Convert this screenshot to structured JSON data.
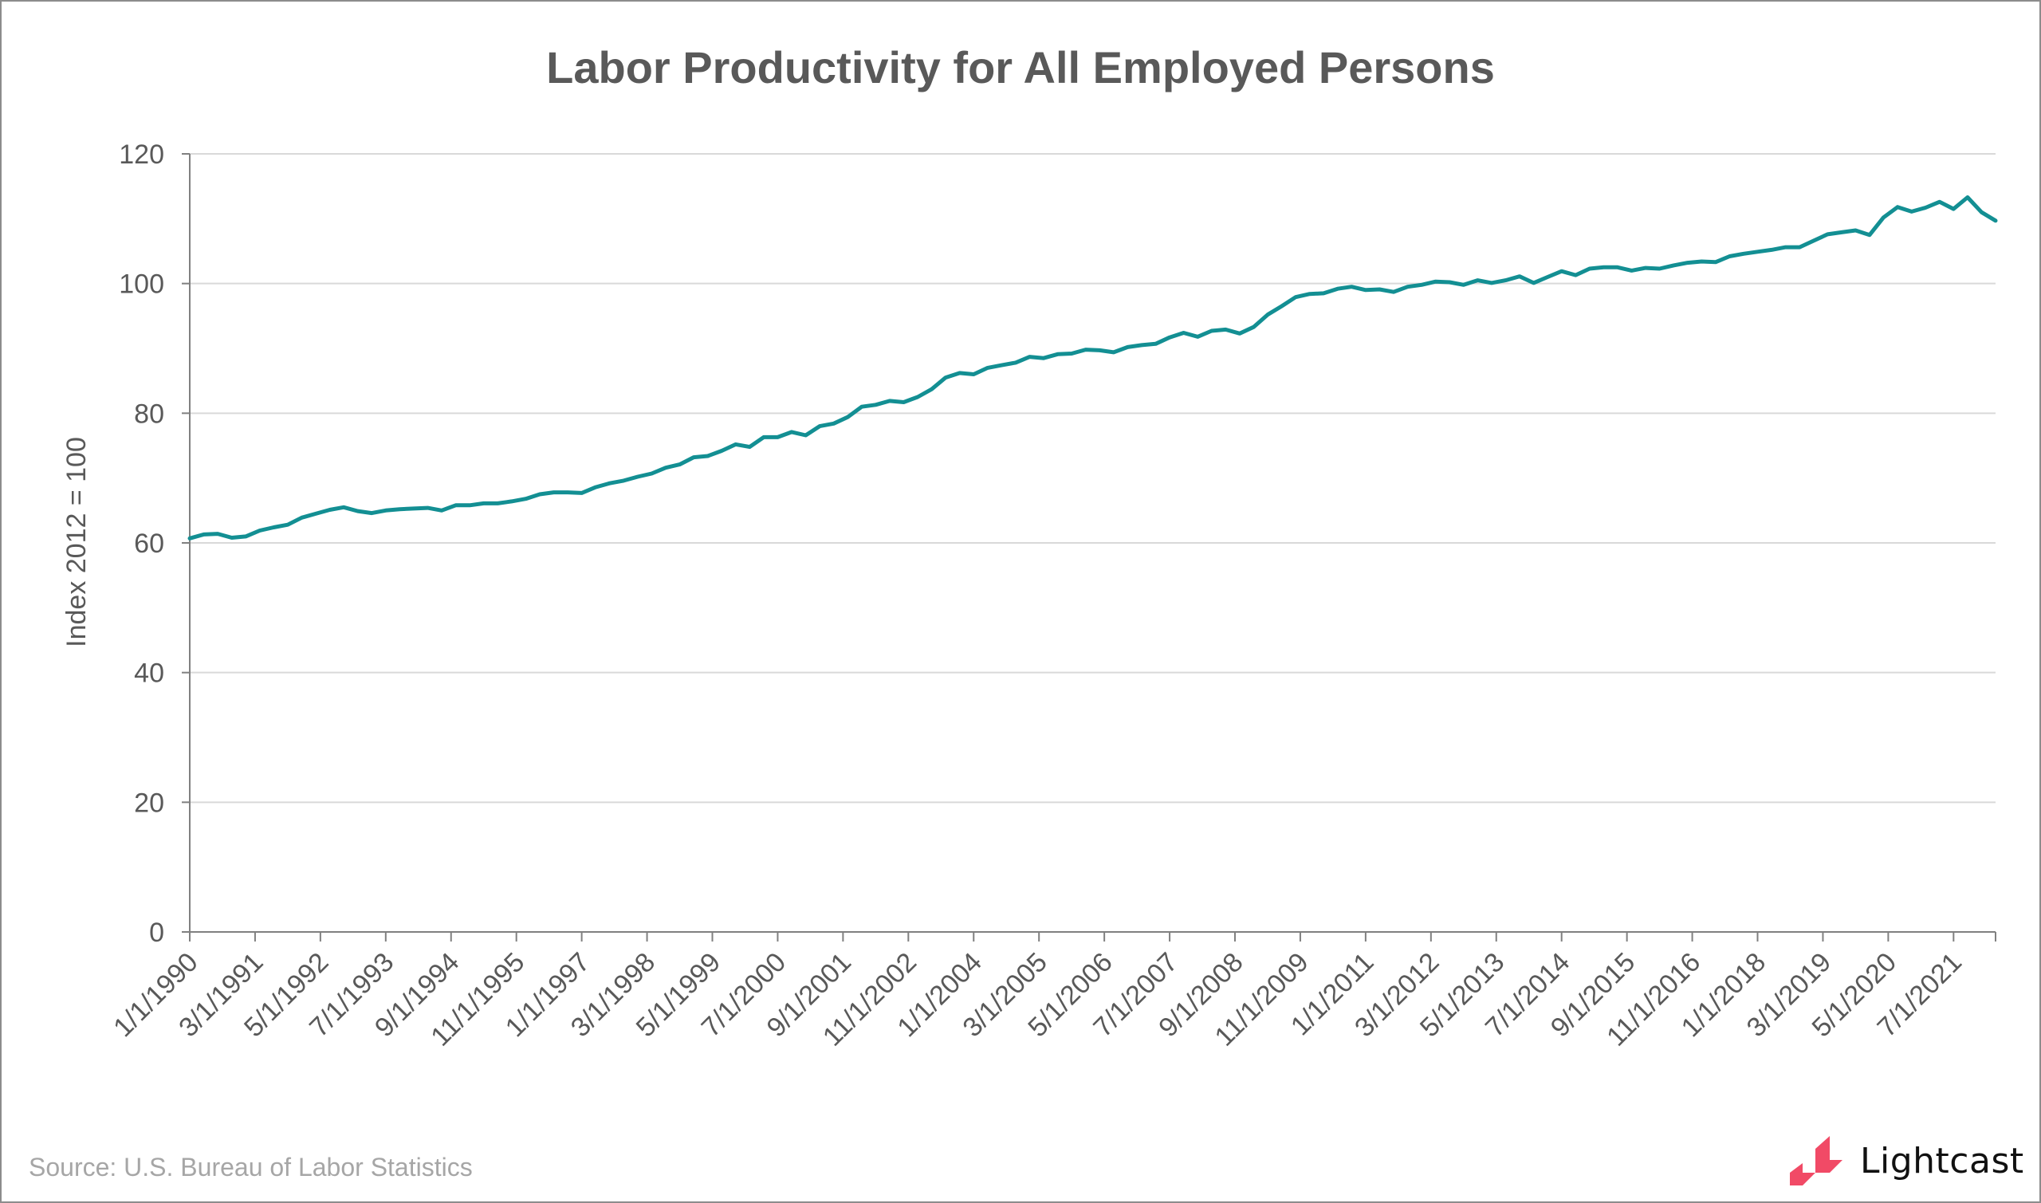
{
  "chart_data": {
    "type": "line",
    "title": "Labor Productivity for All Employed Persons",
    "xlabel": "",
    "ylabel": "Index 2012 = 100",
    "ylim": [
      0,
      120
    ],
    "yticks": [
      0,
      20,
      40,
      60,
      80,
      100,
      120
    ],
    "xtick_labels": [
      "1/1/1990",
      "3/1/1991",
      "5/1/1992",
      "7/1/1993",
      "9/1/1994",
      "11/1/1995",
      "1/1/1997",
      "3/1/1998",
      "5/1/1999",
      "7/1/2000",
      "9/1/2001",
      "11/1/2002",
      "1/1/2004",
      "3/1/2005",
      "5/1/2006",
      "7/1/2007",
      "9/1/2008",
      "11/1/2009",
      "1/1/2011",
      "3/1/2012",
      "5/1/2013",
      "7/1/2014",
      "9/1/2015",
      "11/1/2016",
      "1/1/2018",
      "3/1/2019",
      "5/1/2020",
      "7/1/2021"
    ],
    "grid": true,
    "line_color": "#138f93",
    "x": [
      "1/1/1990",
      "4/1/1990",
      "7/1/1990",
      "10/1/1990",
      "1/1/1991",
      "4/1/1991",
      "7/1/1991",
      "10/1/1991",
      "1/1/1992",
      "4/1/1992",
      "7/1/1992",
      "10/1/1992",
      "1/1/1993",
      "4/1/1993",
      "7/1/1993",
      "10/1/1993",
      "1/1/1994",
      "4/1/1994",
      "7/1/1994",
      "10/1/1994",
      "1/1/1995",
      "4/1/1995",
      "7/1/1995",
      "10/1/1995",
      "1/1/1996",
      "4/1/1996",
      "7/1/1996",
      "10/1/1996",
      "1/1/1997",
      "4/1/1997",
      "7/1/1997",
      "10/1/1997",
      "1/1/1998",
      "4/1/1998",
      "7/1/1998",
      "10/1/1998",
      "1/1/1999",
      "4/1/1999",
      "7/1/1999",
      "10/1/1999",
      "1/1/2000",
      "4/1/2000",
      "7/1/2000",
      "10/1/2000",
      "1/1/2001",
      "4/1/2001",
      "7/1/2001",
      "10/1/2001",
      "1/1/2002",
      "4/1/2002",
      "7/1/2002",
      "10/1/2002",
      "1/1/2003",
      "4/1/2003",
      "7/1/2003",
      "10/1/2003",
      "1/1/2004",
      "4/1/2004",
      "7/1/2004",
      "10/1/2004",
      "1/1/2005",
      "4/1/2005",
      "7/1/2005",
      "10/1/2005",
      "1/1/2006",
      "4/1/2006",
      "7/1/2006",
      "10/1/2006",
      "1/1/2007",
      "4/1/2007",
      "7/1/2007",
      "10/1/2007",
      "1/1/2008",
      "4/1/2008",
      "7/1/2008",
      "10/1/2008",
      "1/1/2009",
      "4/1/2009",
      "7/1/2009",
      "10/1/2009",
      "1/1/2010",
      "4/1/2010",
      "7/1/2010",
      "10/1/2010",
      "1/1/2011",
      "4/1/2011",
      "7/1/2011",
      "10/1/2011",
      "1/1/2012",
      "4/1/2012",
      "7/1/2012",
      "10/1/2012",
      "1/1/2013",
      "4/1/2013",
      "7/1/2013",
      "10/1/2013",
      "1/1/2014",
      "4/1/2014",
      "7/1/2014",
      "10/1/2014",
      "1/1/2015",
      "4/1/2015",
      "7/1/2015",
      "10/1/2015",
      "1/1/2016",
      "4/1/2016",
      "7/1/2016",
      "10/1/2016",
      "1/1/2017",
      "4/1/2017",
      "7/1/2017",
      "10/1/2017",
      "1/1/2018",
      "4/1/2018",
      "7/1/2018",
      "10/1/2018",
      "1/1/2019",
      "4/1/2019",
      "7/1/2019",
      "10/1/2019",
      "1/1/2020",
      "4/1/2020",
      "7/1/2020",
      "10/1/2020",
      "1/1/2021",
      "4/1/2021",
      "7/1/2021",
      "10/1/2021",
      "1/1/2022",
      "4/1/2022"
    ],
    "values": [
      60.7,
      61.3,
      61.4,
      60.8,
      61.0,
      61.9,
      62.4,
      62.8,
      63.9,
      64.5,
      65.1,
      65.5,
      64.9,
      64.6,
      65.0,
      65.2,
      65.3,
      65.4,
      65.0,
      65.8,
      65.8,
      66.1,
      66.1,
      66.4,
      66.8,
      67.5,
      67.8,
      67.8,
      67.7,
      68.6,
      69.2,
      69.6,
      70.2,
      70.7,
      71.6,
      72.1,
      73.2,
      73.4,
      74.2,
      75.2,
      74.8,
      76.3,
      76.3,
      77.1,
      76.6,
      78.0,
      78.4,
      79.4,
      81.0,
      81.3,
      81.9,
      81.7,
      82.5,
      83.7,
      85.5,
      86.2,
      86.0,
      87.0,
      87.4,
      87.8,
      88.7,
      88.5,
      89.1,
      89.2,
      89.8,
      89.7,
      89.4,
      90.2,
      90.5,
      90.7,
      91.7,
      92.4,
      91.8,
      92.7,
      92.9,
      92.3,
      93.3,
      95.2,
      96.5,
      97.9,
      98.4,
      98.5,
      99.2,
      99.5,
      99.0,
      99.1,
      98.7,
      99.5,
      99.8,
      100.3,
      100.2,
      99.8,
      100.5,
      100.1,
      100.5,
      101.1,
      100.1,
      101.0,
      101.9,
      101.3,
      102.3,
      102.5,
      102.5,
      102.0,
      102.4,
      102.3,
      102.8,
      103.2,
      103.4,
      103.3,
      104.2,
      104.6,
      104.9,
      105.2,
      105.6,
      105.6,
      106.6,
      107.6,
      107.9,
      108.2,
      107.5,
      110.2,
      111.8,
      111.1,
      111.7,
      112.6,
      111.5,
      113.3,
      111.0,
      109.7
    ]
  },
  "source": "Source:  U.S. Bureau of Labor Statistics",
  "logo": {
    "text": "Lightcast",
    "color": "#f14a66"
  }
}
